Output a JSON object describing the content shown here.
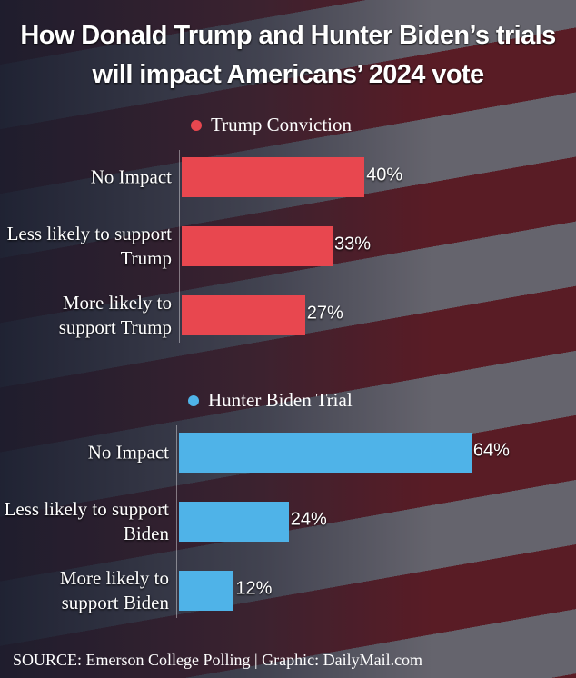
{
  "title": "How Donald Trump and Hunter Biden’s trials will impact Americans’ 2024 vote",
  "source": "SOURCE: Emerson College Polling |  Graphic: DailyMail.com",
  "chart_data": [
    {
      "type": "bar",
      "categories": [
        "No Impact",
        "Less likely to support Trump",
        "More likely to support Trump"
      ],
      "series": [
        {
          "name": "Trump Conviction",
          "color": "#e8474f",
          "values": [
            40,
            33,
            27
          ],
          "value_labels": [
            "40%",
            "33%",
            "27%"
          ]
        }
      ]
    },
    {
      "type": "bar",
      "categories": [
        "No Impact",
        "Less likely to support Biden",
        "More likely to support Biden"
      ],
      "series": [
        {
          "name": "Hunter Biden Trial",
          "color": "#4fb3e8",
          "values": [
            64,
            24,
            12
          ],
          "value_labels": [
            "64%",
            "24%",
            "12%"
          ]
        }
      ]
    }
  ]
}
